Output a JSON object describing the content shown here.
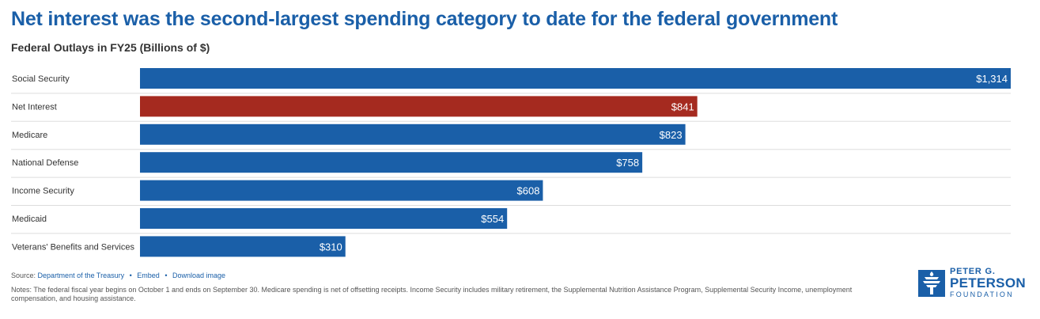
{
  "title": "Net interest was the second-largest spending category to date for the federal government",
  "subtitle": "Federal Outlays in FY25 (Billions of $)",
  "colors": {
    "default_bar": "#1a5fa8",
    "highlight_bar": "#a52a1f",
    "title": "#1a5fa8",
    "grid": "#dddddd"
  },
  "chart_data": {
    "type": "bar",
    "orientation": "horizontal",
    "categories": [
      "Social Security",
      "Net Interest",
      "Medicare",
      "National Defense",
      "Income Security",
      "Medicaid",
      "Veterans' Benefits and Services"
    ],
    "values": [
      1314,
      841,
      823,
      758,
      608,
      554,
      310
    ],
    "value_labels": [
      "$1,314",
      "$841",
      "$823",
      "$758",
      "$608",
      "$554",
      "$310"
    ],
    "highlight": "Net Interest",
    "title": "Net interest was the second-largest spending category to date for the federal government",
    "subtitle": "Federal Outlays in FY25 (Billions of $)",
    "xlim": [
      0,
      1314
    ],
    "grid": true
  },
  "footer": {
    "source_label": "Source:",
    "source_link": "Department of the Treasury",
    "embed_label": "Embed",
    "download_label": "Download image",
    "notes": "Notes: The federal fiscal year begins on October 1 and ends on September 30. Medicare spending is net of offsetting receipts. Income Security includes military retirement, the Supplemental Nutrition Assistance Program, Supplemental Security Income, unemployment compensation, and housing assistance."
  },
  "logo": {
    "line1": "PETER G.",
    "line2": "PETERSON",
    "line3": "FOUNDATION",
    "icon": "torch-icon"
  }
}
